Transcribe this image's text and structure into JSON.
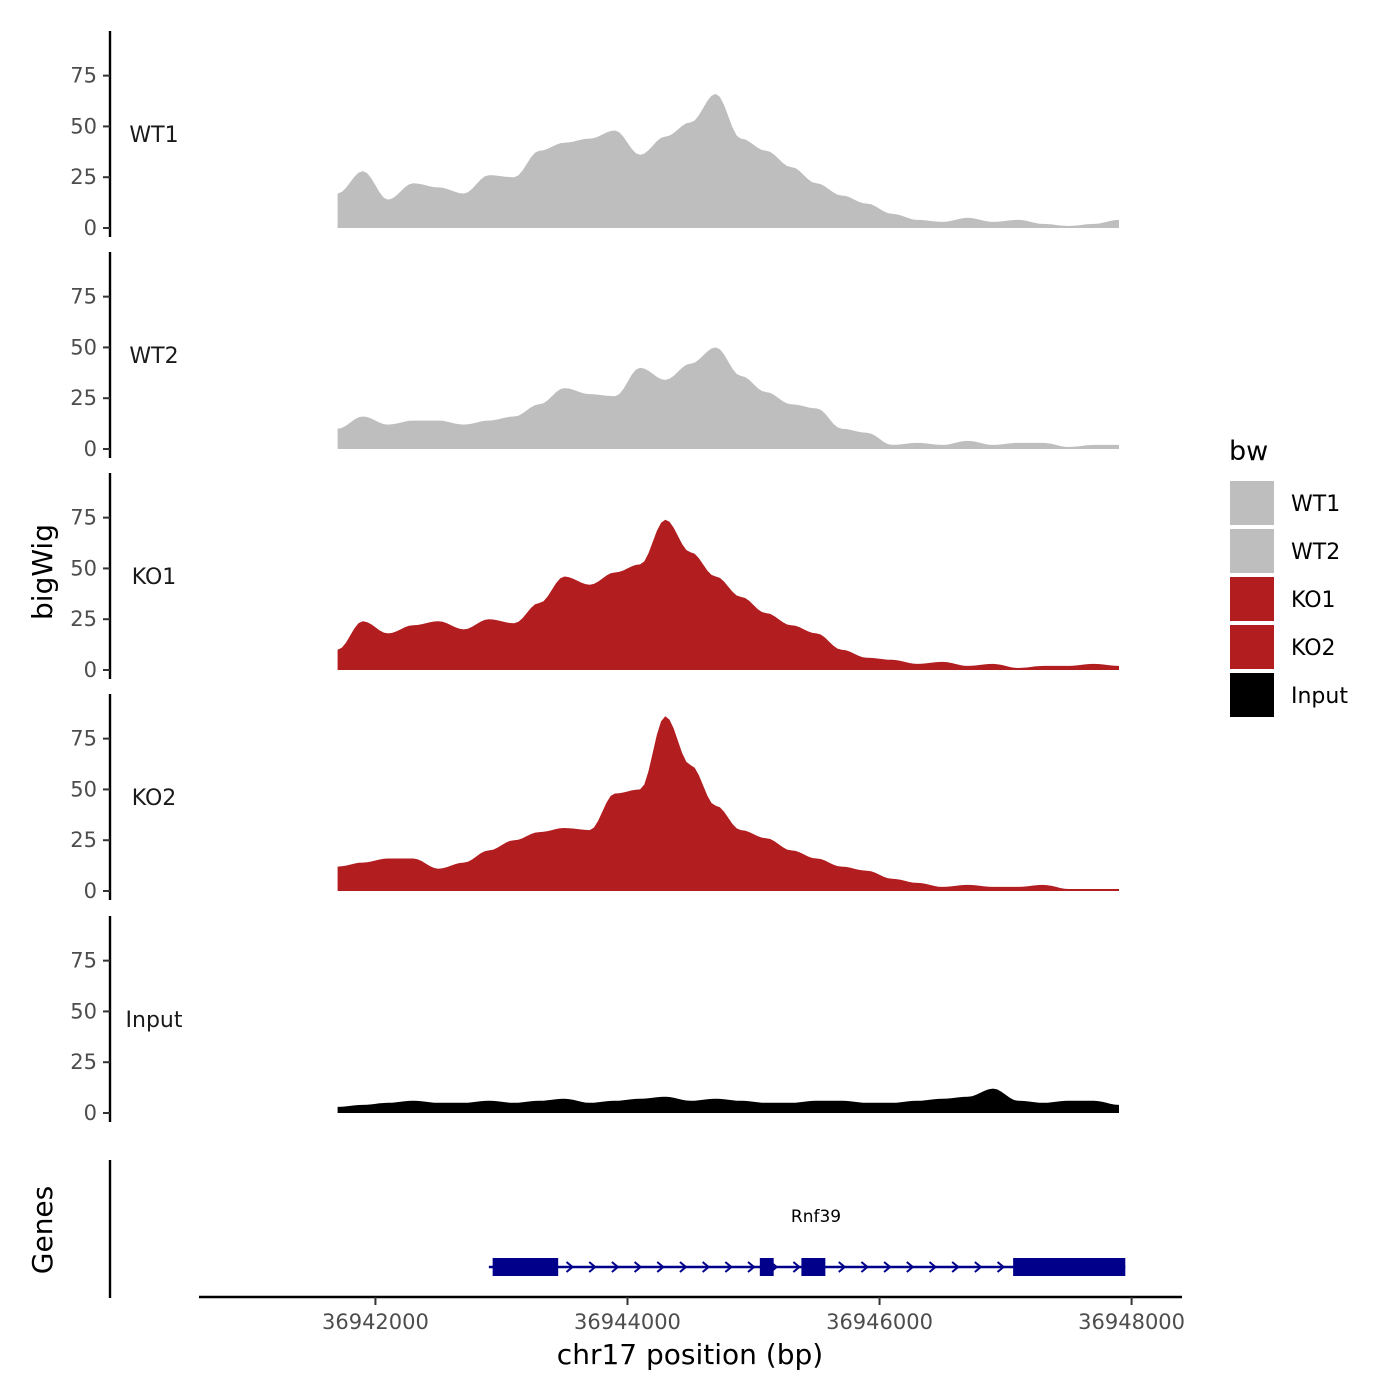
{
  "chart_data": {
    "type": "area",
    "ylabel": "bigWig",
    "genes_label": "Genes",
    "xlabel": "chr17 position (bp)",
    "chromosome": "chr17",
    "xlim": [
      36940600,
      36948400
    ],
    "ylim": [
      0,
      95
    ],
    "x_ticks": [
      36942000,
      36944000,
      36946000,
      36948000
    ],
    "x_tick_labels": [
      "36942000",
      "36944000",
      "36946000",
      "36948000"
    ],
    "y_ticks": [
      0,
      25,
      50,
      75
    ],
    "y_tick_labels": [
      "0",
      "25",
      "50",
      "75"
    ],
    "legend": {
      "title": "bw",
      "entries": [
        {
          "name": "WT1",
          "color": "#bebebe"
        },
        {
          "name": "WT2",
          "color": "#bebebe"
        },
        {
          "name": "KO1",
          "color": "#b21d1f"
        },
        {
          "name": "KO2",
          "color": "#b21d1f"
        },
        {
          "name": "Input",
          "color": "#000000"
        }
      ]
    },
    "x": [
      36941700,
      36941900,
      36942100,
      36942300,
      36942500,
      36942700,
      36942900,
      36943100,
      36943300,
      36943500,
      36943700,
      36943900,
      36944100,
      36944300,
      36944500,
      36944700,
      36944900,
      36945100,
      36945300,
      36945500,
      36945700,
      36945900,
      36946100,
      36946300,
      36946500,
      36946700,
      36946900,
      36947100,
      36947300,
      36947500,
      36947700,
      36947900
    ],
    "series": [
      {
        "name": "WT1",
        "color": "#bebebe",
        "values": [
          17,
          28,
          14,
          22,
          20,
          17,
          26,
          25,
          38,
          42,
          44,
          48,
          36,
          45,
          52,
          66,
          44,
          38,
          30,
          22,
          16,
          12,
          7,
          4,
          3,
          5,
          3,
          4,
          2,
          1,
          2,
          4
        ]
      },
      {
        "name": "WT2",
        "color": "#bebebe",
        "values": [
          10,
          16,
          12,
          14,
          14,
          12,
          14,
          16,
          22,
          30,
          27,
          26,
          40,
          34,
          42,
          50,
          36,
          28,
          22,
          20,
          10,
          8,
          2,
          3,
          2,
          4,
          2,
          3,
          3,
          1,
          2,
          2
        ]
      },
      {
        "name": "KO1",
        "color": "#b21d1f",
        "values": [
          10,
          24,
          18,
          22,
          24,
          20,
          25,
          23,
          33,
          46,
          42,
          48,
          52,
          74,
          58,
          46,
          36,
          28,
          22,
          18,
          10,
          6,
          5,
          3,
          4,
          2,
          3,
          1,
          2,
          2,
          3,
          2
        ]
      },
      {
        "name": "KO2",
        "color": "#b21d1f",
        "values": [
          12,
          14,
          16,
          16,
          11,
          14,
          20,
          25,
          29,
          31,
          30,
          48,
          50,
          86,
          62,
          42,
          30,
          26,
          20,
          16,
          12,
          10,
          6,
          4,
          2,
          3,
          2,
          2,
          3,
          1,
          1,
          1
        ]
      },
      {
        "name": "Input",
        "color": "#000000",
        "values": [
          3,
          4,
          5,
          6,
          5,
          5,
          6,
          5,
          6,
          7,
          5,
          6,
          7,
          8,
          6,
          7,
          6,
          5,
          5,
          6,
          6,
          5,
          5,
          6,
          7,
          8,
          12,
          6,
          5,
          6,
          6,
          4
        ]
      }
    ],
    "gene": {
      "name": "Rnf39",
      "strand": "+",
      "color": "#00008b",
      "start": 36942900,
      "end": 36947950,
      "exons": [
        [
          36942930,
          36943450
        ],
        [
          36945050,
          36945160
        ],
        [
          36945380,
          36945570
        ],
        [
          36947060,
          36947950
        ]
      ]
    }
  }
}
